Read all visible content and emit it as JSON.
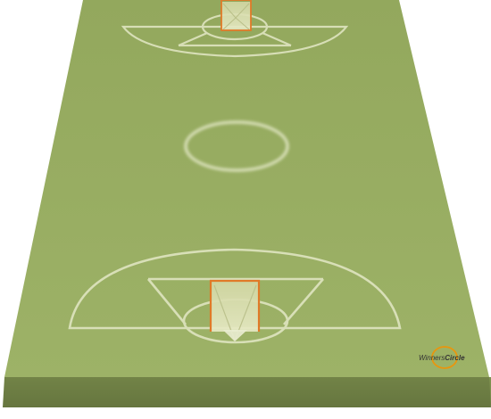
{
  "logo": {
    "text_regular": "Winners",
    "text_bold": "Circle",
    "ring_color": "#e8960e",
    "text_color": "#333333"
  },
  "colors": {
    "field_top": "#9aae64",
    "field_front": "#6d7d45",
    "field_right": "#7f9150",
    "line": "#e3e8c6",
    "goal_frame": "#e07a28",
    "goal_fill": "#d8dcab"
  },
  "diagram": {
    "subject": "lacrosse-field",
    "view": "3d-perspective",
    "goals": 2
  }
}
